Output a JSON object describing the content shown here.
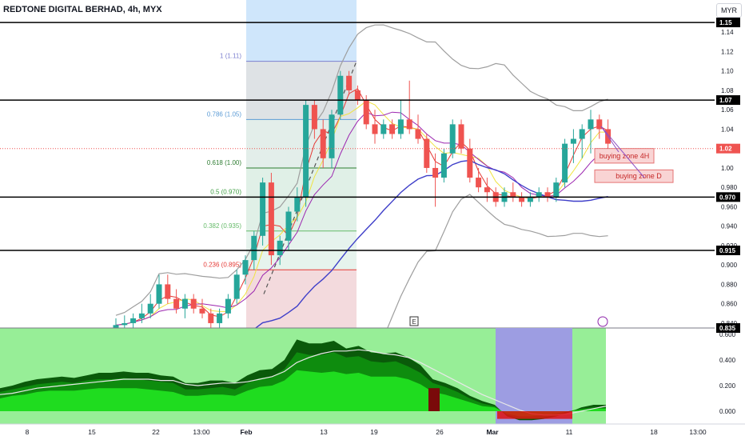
{
  "header": {
    "title": "REDTONE DIGITAL BERHAD, 4h, MYX",
    "currency": "MYR"
  },
  "colors": {
    "up": "#26a69a",
    "down": "#ef5350",
    "black_line": "#000000",
    "blue_ma": "#3f3fc9",
    "bb_gray": "#9e9e9e",
    "fib_blue_zone": "#cfe6fb",
    "fib_gray_zone": "#e1e1e1",
    "fib_green_zone": "#e3f1e3",
    "fib_red_zone": "#f9d7d7",
    "buy_zone_fill": "#f9d4d4",
    "buy_zone_border": "#e57373",
    "osc_bg": "#97ee97",
    "osc_dark": "#0a5a0a",
    "osc_mid": "#0e8c0e",
    "osc_light": "#1fdc1f",
    "osc_purple": "#9d9de2",
    "osc_red": "#e01010",
    "osc_darkred": "#7a0a0a"
  },
  "chart_data": [
    {
      "type": "candlestick",
      "title": "REDTONE DIGITAL BERHAD, 4h, MYX",
      "ylim": [
        0.835,
        1.155
      ],
      "y_ticks": [
        {
          "value": 0.84,
          "label": "0.840"
        },
        {
          "value": 0.86,
          "label": "0.860"
        },
        {
          "value": 0.88,
          "label": "0.880"
        },
        {
          "value": 0.9,
          "label": "0.900"
        },
        {
          "value": 0.92,
          "label": "0.920"
        },
        {
          "value": 0.94,
          "label": "0.940"
        },
        {
          "value": 0.96,
          "label": "0.960"
        },
        {
          "value": 0.98,
          "label": "0.980"
        },
        {
          "value": 1.0,
          "label": "1.00"
        },
        {
          "value": 1.04,
          "label": "1.04"
        },
        {
          "value": 1.06,
          "label": "1.06"
        },
        {
          "value": 1.08,
          "label": "1.08"
        },
        {
          "value": 1.1,
          "label": "1.10"
        },
        {
          "value": 1.12,
          "label": "1.12"
        },
        {
          "value": 1.14,
          "label": "1.14"
        }
      ],
      "price_labels": [
        {
          "value": 1.15,
          "label": "1.15",
          "style": "black"
        },
        {
          "value": 1.07,
          "label": "1.07",
          "style": "black"
        },
        {
          "value": 1.02,
          "label": "1.02",
          "style": "red"
        },
        {
          "value": 0.97,
          "label": "0.970",
          "style": "black"
        },
        {
          "value": 0.915,
          "label": "0.915",
          "style": "black"
        },
        {
          "value": 0.835,
          "label": "0.835",
          "style": "black"
        }
      ],
      "horizontal_levels": [
        1.15,
        1.07,
        0.97,
        0.915
      ],
      "last_price": 1.02,
      "fib_levels": [
        {
          "value": 1.11,
          "label": "1 (1.11)",
          "color": "#7b7fcf"
        },
        {
          "value": 1.05,
          "label": "0.786 (1.05)",
          "color": "#5b9bd5"
        },
        {
          "value": 1.0,
          "label": "0.618 (1.00)",
          "color": "#2e7d32"
        },
        {
          "value": 0.97,
          "label": "0.5 (0.970)",
          "color": "#43a047"
        },
        {
          "value": 0.935,
          "label": "0.382 (0.935)",
          "color": "#66bb6a"
        },
        {
          "value": 0.895,
          "label": "0.236 (0.895)",
          "color": "#e53935"
        }
      ],
      "x_ticks": [
        "8",
        "15",
        "22",
        "13:00",
        "Feb",
        "13",
        "19",
        "26",
        "Mar",
        "11",
        "18",
        "13:00"
      ],
      "annotations": [
        {
          "text": "buying zone 4H",
          "y_low": 1.005,
          "y_high": 1.02
        },
        {
          "text": "buying zone D",
          "y_low": 0.985,
          "y_high": 0.998
        }
      ],
      "markers": [
        "E"
      ],
      "candles": [
        {
          "o": 0.835,
          "h": 0.845,
          "l": 0.83,
          "c": 0.838
        },
        {
          "o": 0.838,
          "h": 0.848,
          "l": 0.833,
          "c": 0.84
        },
        {
          "o": 0.84,
          "h": 0.85,
          "l": 0.835,
          "c": 0.845
        },
        {
          "o": 0.845,
          "h": 0.86,
          "l": 0.84,
          "c": 0.85
        },
        {
          "o": 0.85,
          "h": 0.87,
          "l": 0.845,
          "c": 0.86
        },
        {
          "o": 0.86,
          "h": 0.89,
          "l": 0.855,
          "c": 0.88
        },
        {
          "o": 0.88,
          "h": 0.89,
          "l": 0.86,
          "c": 0.865
        },
        {
          "o": 0.865,
          "h": 0.875,
          "l": 0.85,
          "c": 0.855
        },
        {
          "o": 0.855,
          "h": 0.87,
          "l": 0.845,
          "c": 0.865
        },
        {
          "o": 0.865,
          "h": 0.87,
          "l": 0.85,
          "c": 0.855
        },
        {
          "o": 0.855,
          "h": 0.865,
          "l": 0.845,
          "c": 0.85
        },
        {
          "o": 0.85,
          "h": 0.855,
          "l": 0.835,
          "c": 0.84
        },
        {
          "o": 0.84,
          "h": 0.855,
          "l": 0.835,
          "c": 0.85
        },
        {
          "o": 0.85,
          "h": 0.87,
          "l": 0.845,
          "c": 0.865
        },
        {
          "o": 0.865,
          "h": 0.895,
          "l": 0.86,
          "c": 0.89
        },
        {
          "o": 0.89,
          "h": 0.91,
          "l": 0.88,
          "c": 0.905
        },
        {
          "o": 0.905,
          "h": 0.935,
          "l": 0.895,
          "c": 0.93
        },
        {
          "o": 0.93,
          "h": 0.99,
          "l": 0.92,
          "c": 0.985
        },
        {
          "o": 0.985,
          "h": 0.995,
          "l": 0.9,
          "c": 0.91
        },
        {
          "o": 0.91,
          "h": 0.93,
          "l": 0.9,
          "c": 0.925
        },
        {
          "o": 0.925,
          "h": 0.96,
          "l": 0.915,
          "c": 0.955
        },
        {
          "o": 0.955,
          "h": 0.98,
          "l": 0.945,
          "c": 0.97
        },
        {
          "o": 0.97,
          "h": 1.07,
          "l": 0.96,
          "c": 1.065
        },
        {
          "o": 1.065,
          "h": 1.07,
          "l": 1.03,
          "c": 1.04
        },
        {
          "o": 1.04,
          "h": 1.05,
          "l": 1.0,
          "c": 1.01
        },
        {
          "o": 1.01,
          "h": 1.06,
          "l": 1.0,
          "c": 1.055
        },
        {
          "o": 1.055,
          "h": 1.1,
          "l": 1.05,
          "c": 1.095
        },
        {
          "o": 1.095,
          "h": 1.1,
          "l": 1.075,
          "c": 1.08
        },
        {
          "o": 1.08,
          "h": 1.085,
          "l": 1.065,
          "c": 1.07
        },
        {
          "o": 1.07,
          "h": 1.075,
          "l": 1.04,
          "c": 1.045
        },
        {
          "o": 1.045,
          "h": 1.06,
          "l": 1.025,
          "c": 1.035
        },
        {
          "o": 1.035,
          "h": 1.05,
          "l": 1.03,
          "c": 1.045
        },
        {
          "o": 1.045,
          "h": 1.05,
          "l": 1.03,
          "c": 1.035
        },
        {
          "o": 1.035,
          "h": 1.07,
          "l": 1.03,
          "c": 1.05
        },
        {
          "o": 1.05,
          "h": 1.09,
          "l": 1.035,
          "c": 1.04
        },
        {
          "o": 1.04,
          "h": 1.055,
          "l": 1.025,
          "c": 1.03
        },
        {
          "o": 1.03,
          "h": 1.035,
          "l": 0.995,
          "c": 1.0
        },
        {
          "o": 1.0,
          "h": 1.015,
          "l": 0.96,
          "c": 0.99
        },
        {
          "o": 0.99,
          "h": 1.02,
          "l": 0.985,
          "c": 1.015
        },
        {
          "o": 1.015,
          "h": 1.05,
          "l": 1.01,
          "c": 1.045
        },
        {
          "o": 1.045,
          "h": 1.05,
          "l": 1.015,
          "c": 1.02
        },
        {
          "o": 1.02,
          "h": 1.03,
          "l": 0.985,
          "c": 0.99
        },
        {
          "o": 0.99,
          "h": 1.0,
          "l": 0.975,
          "c": 0.98
        },
        {
          "o": 0.98,
          "h": 0.99,
          "l": 0.965,
          "c": 0.975
        },
        {
          "o": 0.975,
          "h": 0.98,
          "l": 0.96,
          "c": 0.965
        },
        {
          "o": 0.965,
          "h": 0.98,
          "l": 0.96,
          "c": 0.975
        },
        {
          "o": 0.975,
          "h": 0.985,
          "l": 0.965,
          "c": 0.97
        },
        {
          "o": 0.97,
          "h": 0.975,
          "l": 0.96,
          "c": 0.965
        },
        {
          "o": 0.965,
          "h": 0.975,
          "l": 0.96,
          "c": 0.97
        },
        {
          "o": 0.97,
          "h": 0.98,
          "l": 0.965,
          "c": 0.975
        },
        {
          "o": 0.975,
          "h": 0.98,
          "l": 0.965,
          "c": 0.97
        },
        {
          "o": 0.97,
          "h": 0.99,
          "l": 0.965,
          "c": 0.985
        },
        {
          "o": 0.985,
          "h": 1.03,
          "l": 0.98,
          "c": 1.025
        },
        {
          "o": 1.025,
          "h": 1.04,
          "l": 1.005,
          "c": 1.03
        },
        {
          "o": 1.03,
          "h": 1.045,
          "l": 1.01,
          "c": 1.04
        },
        {
          "o": 1.04,
          "h": 1.06,
          "l": 1.015,
          "c": 1.05
        },
        {
          "o": 1.05,
          "h": 1.055,
          "l": 1.03,
          "c": 1.04
        },
        {
          "o": 1.04,
          "h": 1.05,
          "l": 1.01,
          "c": 1.025
        }
      ]
    },
    {
      "type": "area",
      "ylim": [
        -0.1,
        0.65
      ],
      "y_ticks": [
        {
          "value": 0.6,
          "label": "0.600"
        },
        {
          "value": 0.4,
          "label": "0.400"
        },
        {
          "value": 0.2,
          "label": "0.200"
        },
        {
          "value": 0.0,
          "label": "0.000"
        }
      ],
      "series_outer": [
        0.18,
        0.2,
        0.23,
        0.25,
        0.26,
        0.27,
        0.26,
        0.28,
        0.3,
        0.3,
        0.31,
        0.3,
        0.3,
        0.28,
        0.27,
        0.22,
        0.22,
        0.24,
        0.24,
        0.22,
        0.28,
        0.32,
        0.33,
        0.4,
        0.56,
        0.53,
        0.53,
        0.55,
        0.49,
        0.51,
        0.46,
        0.45,
        0.46,
        0.42,
        0.36,
        0.25,
        0.22,
        0.18,
        0.12,
        0.08,
        0.05,
        -0.04,
        -0.07,
        -0.07,
        -0.06,
        -0.04,
        -0.01,
        0.03,
        0.05,
        0.05
      ],
      "series_mid": [
        0.15,
        0.17,
        0.19,
        0.21,
        0.22,
        0.23,
        0.22,
        0.24,
        0.25,
        0.25,
        0.26,
        0.25,
        0.24,
        0.23,
        0.22,
        0.17,
        0.17,
        0.18,
        0.19,
        0.17,
        0.22,
        0.26,
        0.27,
        0.33,
        0.46,
        0.44,
        0.44,
        0.46,
        0.42,
        0.43,
        0.39,
        0.38,
        0.39,
        0.35,
        0.3,
        0.22,
        0.19,
        0.15,
        0.1,
        0.06,
        0.04,
        -0.03,
        -0.06,
        -0.06,
        -0.05,
        -0.03,
        0.0,
        0.02,
        0.03,
        0.03
      ],
      "series_inner": [
        0.1,
        0.12,
        0.13,
        0.15,
        0.16,
        0.16,
        0.16,
        0.17,
        0.18,
        0.18,
        0.18,
        0.18,
        0.17,
        0.16,
        0.15,
        0.12,
        0.12,
        0.13,
        0.13,
        0.12,
        0.16,
        0.19,
        0.2,
        0.24,
        0.32,
        0.31,
        0.3,
        0.31,
        0.29,
        0.3,
        0.27,
        0.27,
        0.27,
        0.25,
        0.21,
        0.15,
        0.13,
        0.1,
        0.07,
        0.04,
        0.03,
        -0.02,
        -0.04,
        -0.04,
        -0.03,
        -0.02,
        0.0,
        0.01,
        0.02,
        0.02
      ],
      "signal_line": [
        0.13,
        0.14,
        0.16,
        0.18,
        0.19,
        0.2,
        0.21,
        0.22,
        0.23,
        0.24,
        0.25,
        0.25,
        0.25,
        0.24,
        0.24,
        0.21,
        0.2,
        0.21,
        0.22,
        0.22,
        0.23,
        0.25,
        0.27,
        0.31,
        0.38,
        0.42,
        0.45,
        0.47,
        0.47,
        0.48,
        0.47,
        0.45,
        0.44,
        0.42,
        0.38,
        0.33,
        0.28,
        0.23,
        0.18,
        0.13,
        0.09,
        0.05,
        0.01,
        -0.02,
        -0.03,
        -0.03,
        -0.02,
        0.0,
        0.02,
        0.04
      ]
    }
  ]
}
